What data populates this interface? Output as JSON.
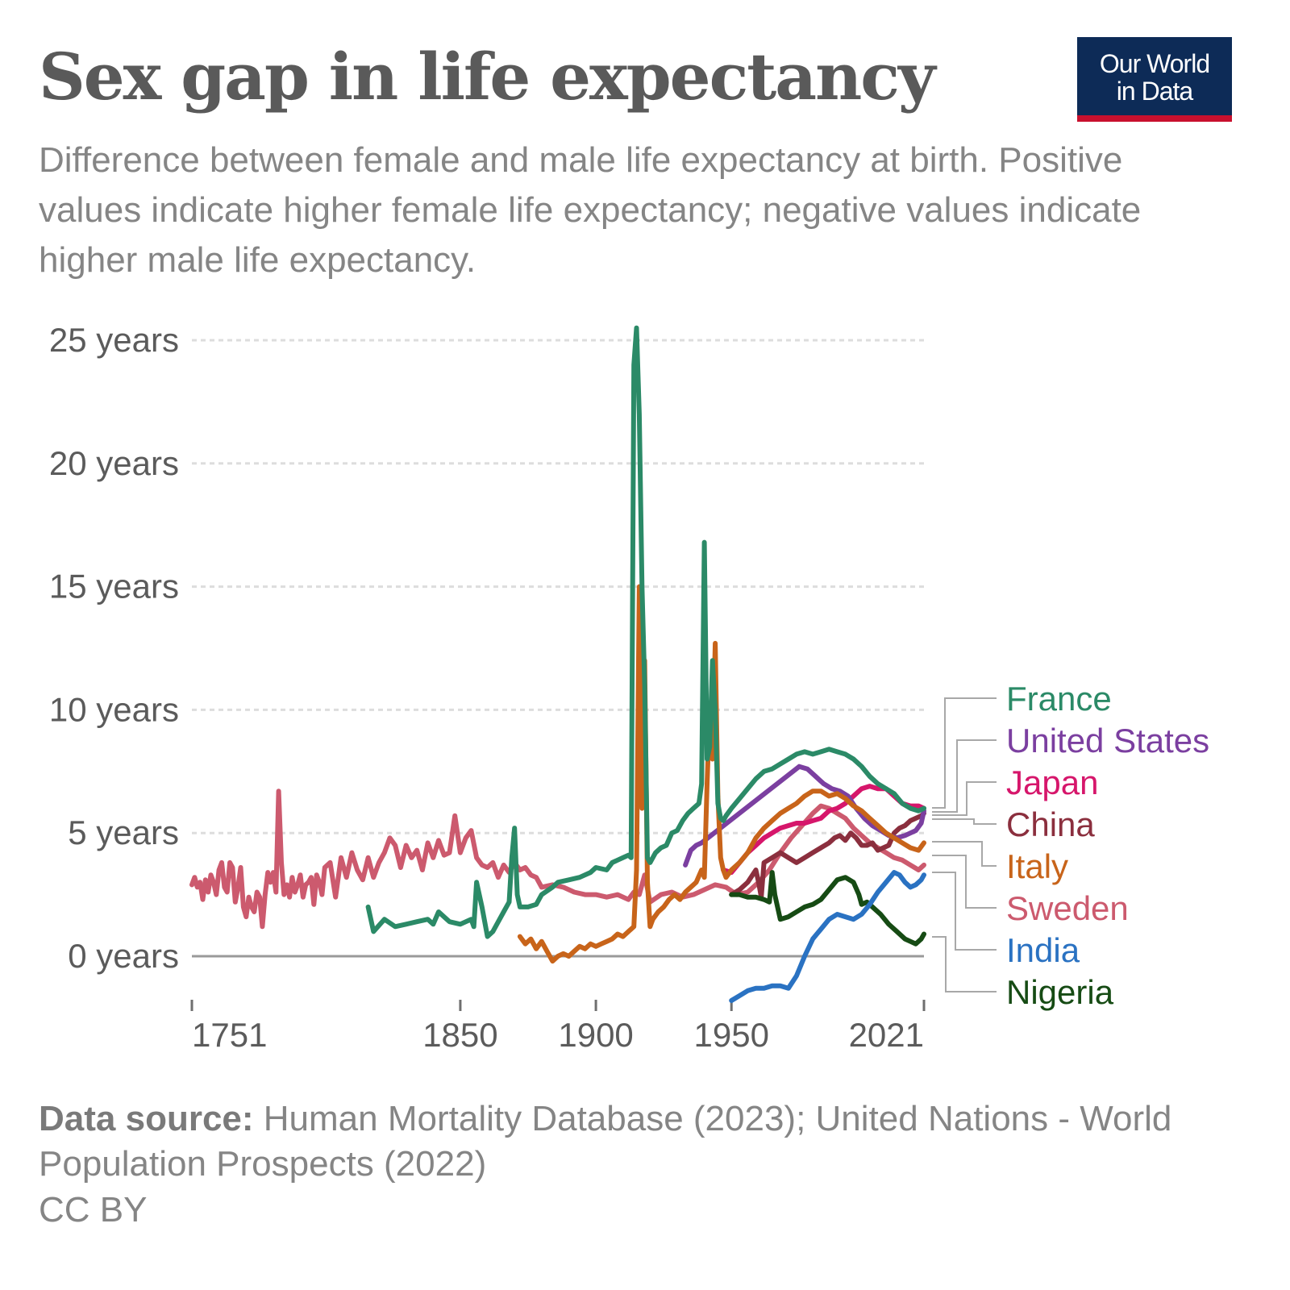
{
  "header": {
    "title": "Sex gap in life expectancy",
    "subtitle": "Difference between female and male life expectancy at birth. Positive values indicate higher female life expectancy; negative values indicate higher male life expectancy.",
    "logo_line1": "Our World",
    "logo_line2": "in Data"
  },
  "footer": {
    "source_label": "Data source:",
    "source_text": "Human Mortality Database (2023); United Nations - World Population Prospects (2022)",
    "license": "CC BY"
  },
  "colors": {
    "France": "#2b8a67",
    "United States": "#7b3fa0",
    "Japan": "#d6166b",
    "China": "#8b2f3e",
    "Italy": "#c8641a",
    "Sweden": "#cc5a6e",
    "India": "#2a72c2",
    "Nigeria": "#164b14"
  },
  "chart_data": {
    "type": "line",
    "title": "Sex gap in life expectancy",
    "xlabel": "",
    "ylabel": "",
    "xlim": [
      1751,
      2021
    ],
    "ylim": [
      -2,
      25
    ],
    "x_ticks": [
      1751,
      1850,
      1900,
      1950,
      2021
    ],
    "y_ticks": [
      0,
      5,
      10,
      15,
      20,
      25
    ],
    "y_tick_labels": [
      "0 years",
      "5 years",
      "10 years",
      "15 years",
      "20 years",
      "25 years"
    ],
    "grid": "horizontal dotted",
    "legend": "right, labels at line ends",
    "series": [
      {
        "name": "France",
        "x": [
          1816,
          1818,
          1822,
          1826,
          1830,
          1834,
          1838,
          1840,
          1842,
          1846,
          1850,
          1854,
          1855,
          1856,
          1858,
          1860,
          1862,
          1864,
          1866,
          1868,
          1869,
          1870,
          1871,
          1872,
          1875,
          1878,
          1880,
          1884,
          1886,
          1890,
          1894,
          1898,
          1900,
          1904,
          1906,
          1908,
          1910,
          1912,
          1913,
          1914,
          1915,
          1916,
          1917,
          1918,
          1919,
          1920,
          1922,
          1924,
          1926,
          1928,
          1930,
          1932,
          1934,
          1936,
          1938,
          1939,
          1940,
          1941,
          1942,
          1943,
          1944,
          1945,
          1946,
          1947,
          1948,
          1950,
          1953,
          1956,
          1959,
          1962,
          1965,
          1968,
          1971,
          1974,
          1977,
          1980,
          1983,
          1986,
          1989,
          1992,
          1995,
          1998,
          2001,
          2004,
          2007,
          2010,
          2013,
          2016,
          2019,
          2021
        ],
        "y": [
          2.0,
          1.0,
          1.5,
          1.2,
          1.3,
          1.4,
          1.5,
          1.3,
          1.8,
          1.4,
          1.3,
          1.5,
          1.2,
          3.0,
          2.0,
          0.8,
          1.0,
          1.4,
          1.8,
          2.2,
          4.0,
          5.2,
          2.5,
          2.0,
          2.0,
          2.1,
          2.5,
          2.8,
          3.0,
          3.1,
          3.2,
          3.4,
          3.6,
          3.5,
          3.8,
          3.9,
          4.0,
          4.1,
          4.0,
          24.0,
          25.5,
          22.0,
          15.0,
          11.0,
          4.0,
          3.8,
          4.2,
          4.4,
          4.5,
          5.0,
          5.1,
          5.5,
          5.8,
          6.0,
          6.2,
          7.0,
          16.8,
          8.0,
          8.5,
          12.0,
          10.0,
          6.2,
          5.6,
          5.5,
          5.7,
          6.0,
          6.4,
          6.8,
          7.2,
          7.5,
          7.6,
          7.8,
          8.0,
          8.2,
          8.3,
          8.2,
          8.3,
          8.4,
          8.3,
          8.2,
          8.0,
          7.7,
          7.3,
          7.0,
          6.8,
          6.6,
          6.2,
          6.0,
          5.9,
          6.0
        ]
      },
      {
        "name": "United States",
        "x": [
          1933,
          1935,
          1937,
          1939,
          1975,
          1978,
          1981,
          1984,
          1987,
          1990,
          1993,
          1996,
          1999,
          2002,
          2005,
          2008,
          2011,
          2014,
          2016,
          2018,
          2020,
          2021
        ],
        "y": [
          3.7,
          4.3,
          4.5,
          4.6,
          7.7,
          7.6,
          7.3,
          7.0,
          6.8,
          6.7,
          6.5,
          6.0,
          5.6,
          5.3,
          5.1,
          4.9,
          4.8,
          4.9,
          5.0,
          5.1,
          5.4,
          5.9
        ]
      },
      {
        "name": "Japan",
        "x": [
          1947,
          1950,
          1953,
          1956,
          1959,
          1962,
          1965,
          1968,
          1971,
          1974,
          1977,
          1980,
          1983,
          1986,
          1989,
          1992,
          1995,
          1998,
          2001,
          2004,
          2007,
          2010,
          2013,
          2016,
          2019,
          2021
        ],
        "y": [
          3.5,
          3.4,
          3.8,
          4.2,
          4.5,
          4.8,
          5.0,
          5.2,
          5.3,
          5.4,
          5.4,
          5.5,
          5.6,
          5.9,
          6.0,
          6.2,
          6.5,
          6.8,
          6.9,
          6.8,
          6.8,
          6.5,
          6.2,
          6.1,
          6.1,
          6.0
        ]
      },
      {
        "name": "China",
        "x": [
          1950,
          1953,
          1956,
          1959,
          1960,
          1961,
          1962,
          1965,
          1968,
          1971,
          1974,
          1977,
          1980,
          1983,
          1986,
          1988,
          1990,
          1992,
          1994,
          1996,
          1998,
          2000,
          2002,
          2004,
          2006,
          2008,
          2010,
          2012,
          2014,
          2016,
          2018,
          2020,
          2021
        ],
        "y": [
          2.5,
          2.7,
          3.0,
          3.5,
          3.0,
          2.4,
          3.8,
          4.0,
          4.2,
          4.0,
          3.8,
          4.0,
          4.2,
          4.4,
          4.6,
          4.8,
          4.9,
          4.7,
          5.0,
          4.8,
          4.5,
          4.5,
          4.6,
          4.3,
          4.4,
          4.5,
          5.0,
          5.2,
          5.3,
          5.5,
          5.6,
          5.7,
          5.8
        ]
      },
      {
        "name": "Italy",
        "x": [
          1872,
          1874,
          1876,
          1878,
          1880,
          1882,
          1884,
          1886,
          1888,
          1890,
          1892,
          1894,
          1896,
          1898,
          1900,
          1902,
          1904,
          1906,
          1908,
          1910,
          1912,
          1913,
          1914,
          1915,
          1916,
          1917,
          1918,
          1919,
          1920,
          1921,
          1923,
          1925,
          1927,
          1929,
          1931,
          1933,
          1935,
          1937,
          1939,
          1940,
          1941,
          1942,
          1943,
          1944,
          1945,
          1946,
          1947,
          1948,
          1950,
          1953,
          1956,
          1959,
          1962,
          1965,
          1968,
          1971,
          1974,
          1977,
          1980,
          1983,
          1986,
          1989,
          1992,
          1995,
          1998,
          2001,
          2004,
          2007,
          2010,
          2013,
          2016,
          2019,
          2021
        ],
        "y": [
          0.8,
          0.5,
          0.7,
          0.3,
          0.6,
          0.2,
          -0.2,
          0.0,
          0.1,
          0.0,
          0.2,
          0.4,
          0.3,
          0.5,
          0.4,
          0.5,
          0.6,
          0.7,
          0.9,
          0.8,
          1.0,
          1.1,
          1.2,
          3.5,
          15.0,
          6.0,
          12.0,
          3.0,
          1.2,
          1.5,
          1.8,
          2.0,
          2.3,
          2.5,
          2.3,
          2.6,
          2.8,
          3.0,
          3.5,
          3.2,
          7.0,
          10.0,
          8.0,
          12.7,
          6.5,
          4.0,
          3.5,
          3.2,
          3.5,
          3.8,
          4.2,
          4.8,
          5.2,
          5.5,
          5.8,
          6.0,
          6.2,
          6.5,
          6.7,
          6.7,
          6.5,
          6.6,
          6.4,
          6.1,
          5.9,
          5.6,
          5.3,
          5.0,
          4.8,
          4.6,
          4.4,
          4.3,
          4.6
        ]
      },
      {
        "name": "Sweden",
        "x": [
          1751,
          1752,
          1753,
          1754,
          1755,
          1756,
          1757,
          1758,
          1759,
          1760,
          1761,
          1762,
          1763,
          1764,
          1765,
          1766,
          1767,
          1768,
          1769,
          1770,
          1771,
          1772,
          1773,
          1774,
          1775,
          1776,
          1777,
          1778,
          1779,
          1780,
          1781,
          1782,
          1783,
          1784,
          1785,
          1786,
          1787,
          1788,
          1789,
          1790,
          1791,
          1792,
          1793,
          1794,
          1795,
          1796,
          1797,
          1798,
          1799,
          1800,
          1802,
          1804,
          1806,
          1808,
          1810,
          1812,
          1814,
          1816,
          1818,
          1820,
          1822,
          1824,
          1826,
          1828,
          1830,
          1832,
          1834,
          1836,
          1838,
          1840,
          1842,
          1844,
          1846,
          1848,
          1850,
          1852,
          1854,
          1856,
          1858,
          1860,
          1862,
          1864,
          1866,
          1868,
          1870,
          1872,
          1874,
          1876,
          1878,
          1880,
          1884,
          1888,
          1892,
          1896,
          1900,
          1904,
          1908,
          1912,
          1914,
          1916,
          1918,
          1920,
          1924,
          1928,
          1932,
          1936,
          1940,
          1944,
          1948,
          1952,
          1956,
          1960,
          1964,
          1968,
          1972,
          1976,
          1980,
          1983,
          1986,
          1989,
          1992,
          1995,
          1998,
          2001,
          2004,
          2007,
          2010,
          2013,
          2016,
          2019,
          2021
        ],
        "y": [
          2.9,
          3.2,
          2.8,
          3.0,
          2.3,
          3.1,
          2.6,
          3.3,
          3.0,
          2.5,
          3.5,
          3.8,
          2.8,
          2.6,
          3.8,
          3.6,
          2.2,
          2.8,
          3.6,
          2.0,
          1.6,
          2.4,
          2.0,
          1.8,
          2.6,
          2.4,
          1.2,
          2.5,
          3.4,
          3.0,
          3.4,
          2.6,
          6.7,
          3.8,
          2.5,
          2.9,
          2.4,
          3.2,
          2.6,
          2.9,
          3.3,
          2.4,
          2.9,
          3.0,
          3.2,
          2.1,
          3.3,
          3.0,
          2.5,
          3.6,
          3.8,
          2.4,
          4.0,
          3.2,
          4.2,
          3.5,
          3.1,
          4.0,
          3.2,
          3.8,
          4.2,
          4.8,
          4.5,
          3.6,
          4.5,
          4.0,
          4.3,
          3.5,
          4.6,
          4.0,
          4.7,
          4.1,
          4.2,
          5.7,
          4.2,
          4.8,
          5.1,
          4.0,
          3.7,
          3.6,
          3.8,
          3.2,
          3.7,
          3.4,
          3.8,
          3.5,
          3.6,
          3.3,
          3.2,
          2.8,
          2.9,
          2.8,
          2.6,
          2.5,
          2.5,
          2.4,
          2.5,
          2.3,
          2.6,
          2.5,
          3.3,
          2.2,
          2.5,
          2.6,
          2.4,
          2.5,
          2.7,
          2.9,
          2.8,
          2.5,
          2.6,
          3.0,
          3.5,
          4.2,
          4.8,
          5.3,
          5.8,
          6.1,
          6.0,
          5.8,
          5.6,
          5.2,
          4.9,
          4.6,
          4.4,
          4.2,
          4.0,
          3.9,
          3.7,
          3.5,
          3.7
        ]
      },
      {
        "name": "India",
        "x": [
          1950,
          1953,
          1956,
          1959,
          1962,
          1965,
          1968,
          1971,
          1974,
          1977,
          1980,
          1983,
          1986,
          1989,
          1992,
          1995,
          1998,
          2001,
          2004,
          2007,
          2010,
          2012,
          2014,
          2016,
          2018,
          2020,
          2021
        ],
        "y": [
          -1.8,
          -1.6,
          -1.4,
          -1.3,
          -1.3,
          -1.2,
          -1.2,
          -1.3,
          -0.8,
          0.0,
          0.7,
          1.1,
          1.5,
          1.7,
          1.6,
          1.5,
          1.7,
          2.1,
          2.6,
          3.0,
          3.4,
          3.3,
          3.0,
          2.8,
          2.9,
          3.1,
          3.3
        ]
      },
      {
        "name": "Nigeria",
        "x": [
          1950,
          1953,
          1956,
          1959,
          1962,
          1964,
          1965,
          1966,
          1968,
          1971,
          1974,
          1977,
          1980,
          1983,
          1986,
          1989,
          1992,
          1995,
          1997,
          1998,
          2000,
          2002,
          2005,
          2008,
          2011,
          2014,
          2016,
          2018,
          2020,
          2021
        ],
        "y": [
          2.5,
          2.5,
          2.4,
          2.4,
          2.3,
          2.2,
          3.4,
          2.5,
          1.5,
          1.6,
          1.8,
          2.0,
          2.1,
          2.3,
          2.7,
          3.1,
          3.2,
          3.0,
          2.5,
          2.1,
          2.2,
          2.0,
          1.7,
          1.3,
          1.0,
          0.7,
          0.6,
          0.5,
          0.7,
          0.9
        ]
      }
    ]
  }
}
